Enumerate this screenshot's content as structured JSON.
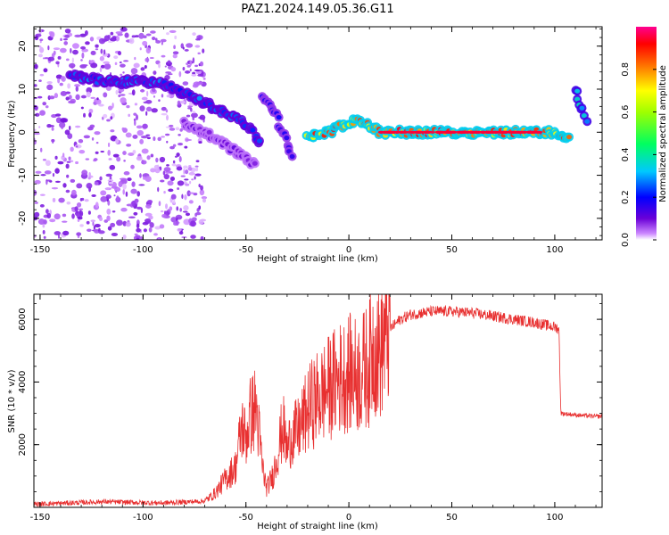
{
  "title": "PAZ1.2024.149.05.36.G11",
  "chart_data": [
    {
      "type": "heatmap",
      "title": "",
      "xlabel": "Height of straight line (km)",
      "ylabel": "Frequency (Hz)",
      "xlim": [
        -153,
        123
      ],
      "ylim": [
        -25,
        24.5
      ],
      "xticks": [
        -150,
        -100,
        -50,
        0,
        50,
        100
      ],
      "yticks": [
        -20,
        -10,
        0,
        10,
        20
      ],
      "colorbar": {
        "label": "Normalized spectral amplitude",
        "range": [
          0,
          1
        ],
        "ticks": [
          0.0,
          0.2,
          0.4,
          0.6,
          0.8
        ],
        "colormap": "rainbow (purple-blue-cyan-green-yellow-red-magenta)"
      },
      "features": [
        {
          "name": "scattered low amplitude noise",
          "x_range": [
            -153,
            -70
          ],
          "freq_range": [
            -25,
            24
          ],
          "amplitude": 0.05
        },
        {
          "name": "upper branch",
          "points": [
            [
              -135,
              13
            ],
            [
              -125,
              12.5
            ],
            [
              -115,
              11.5
            ],
            [
              -100,
              12
            ],
            [
              -90,
              11
            ],
            [
              -75,
              8
            ],
            [
              -65,
              5.5
            ],
            [
              -55,
              3.5
            ],
            [
              -48,
              1
            ],
            [
              -42,
              -3
            ]
          ],
          "amplitude": 0.3
        },
        {
          "name": "lower branch",
          "points": [
            [
              -80,
              2
            ],
            [
              -70,
              0
            ],
            [
              -60,
              -3
            ],
            [
              -50,
              -6
            ],
            [
              -45,
              -8
            ]
          ],
          "amplitude": 0.12
        },
        {
          "name": "secondary branch",
          "points": [
            [
              -42,
              8
            ],
            [
              -36,
              5
            ],
            [
              -33,
              1
            ],
            [
              -30,
              -3
            ],
            [
              -27,
              -6
            ]
          ],
          "amplitude": 0.2
        },
        {
          "name": "main carrier",
          "points": [
            [
              -20,
              -1
            ],
            [
              -10,
              0
            ],
            [
              5,
              3
            ],
            [
              15,
              0
            ],
            [
              100,
              0
            ],
            [
              108,
              -2
            ]
          ],
          "amplitude": 0.95
        },
        {
          "name": "right edge streak",
          "points": [
            [
              110,
              10
            ],
            [
              113,
              6
            ],
            [
              116,
              2
            ]
          ],
          "amplitude": 0.4
        }
      ]
    },
    {
      "type": "line",
      "title": "",
      "xlabel": "Height of straight line (km)",
      "ylabel": "SNR (10 * v/v)",
      "xlim": [
        -153,
        123
      ],
      "ylim": [
        0,
        6800
      ],
      "xticks": [
        -150,
        -100,
        -50,
        0,
        50,
        100
      ],
      "yticks": [
        2000,
        4000,
        6000
      ],
      "color": "#e83030",
      "series": [
        {
          "x": [
            -153,
            -140,
            -120,
            -100,
            -90,
            -80,
            -70,
            -65,
            -60,
            -55,
            -52,
            -50,
            -48,
            -45,
            -42,
            -40,
            -37,
            -35,
            -32,
            -30,
            -28,
            -25,
            -22,
            -20,
            -18,
            -15,
            -10,
            -5,
            0,
            5,
            10,
            12,
            15,
            18,
            20,
            25,
            30,
            40,
            50,
            60,
            70,
            80,
            90,
            100,
            102,
            103,
            110,
            120,
            123
          ],
          "y": [
            100,
            130,
            180,
            150,
            140,
            170,
            200,
            450,
            900,
            1300,
            2600,
            2200,
            2900,
            3200,
            1300,
            600,
            1000,
            1600,
            2600,
            1800,
            2300,
            2400,
            2800,
            3100,
            3300,
            3500,
            3800,
            4100,
            4300,
            4200,
            4600,
            5200,
            4900,
            5600,
            5700,
            6000,
            6150,
            6250,
            6250,
            6200,
            6100,
            6000,
            5900,
            5750,
            5700,
            3000,
            2950,
            2900,
            2900
          ]
        }
      ]
    }
  ]
}
